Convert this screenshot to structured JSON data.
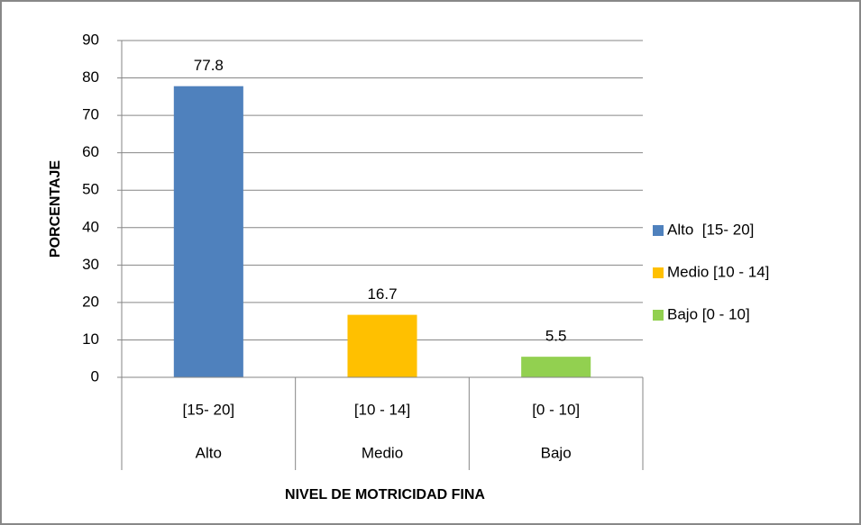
{
  "chart_data": {
    "type": "bar",
    "categories": [
      "[15- 20]",
      "[10 - 14]",
      "[0 - 10]"
    ],
    "category_groups": [
      "Alto",
      "Medio",
      "Bajo"
    ],
    "values": [
      77.8,
      16.7,
      5.5
    ],
    "colors": [
      "#4f81bd",
      "#ffc000",
      "#92d050"
    ],
    "legend": [
      "Alto  [15- 20]",
      "Medio [10 - 14]",
      "Bajo [0 - 10]"
    ],
    "x_label": "NIVEL DE MOTRICIDAD FINA",
    "y_label": "PORCENTAJE",
    "ylim": [
      0,
      90
    ],
    "yticks": [
      0,
      10,
      20,
      30,
      40,
      50,
      60,
      70,
      80,
      90
    ],
    "grid": true
  }
}
